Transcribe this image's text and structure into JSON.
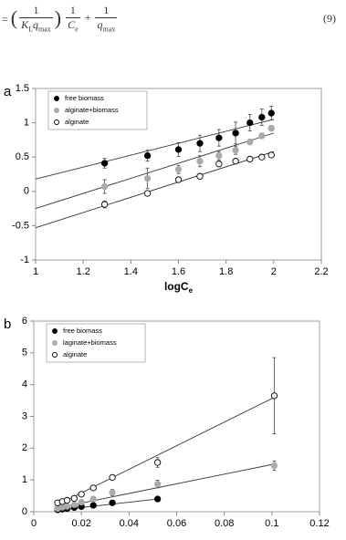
{
  "equation": {
    "eq": "=",
    "n1": "1",
    "k": "K",
    "ksub": "L",
    "q1": "q",
    "q1sub": "max",
    "n2": "1",
    "c": "C",
    "csub": "e",
    "plus": "+",
    "n3": "1",
    "q2": "q",
    "q2sub": "max",
    "number": "(9)"
  },
  "chart_data": [
    {
      "type": "scatter",
      "panel": "a",
      "x_label": "logC",
      "x_label_sub": "e",
      "xlim": [
        1,
        2.2
      ],
      "xticks": [
        1,
        1.2,
        1.4,
        1.6,
        1.8,
        2,
        2.2
      ],
      "ylim": [
        -1,
        1.5
      ],
      "yticks": [
        -1,
        -0.5,
        0,
        0.5,
        1,
        1.5
      ],
      "x": [
        1.29,
        1.47,
        1.6,
        1.69,
        1.77,
        1.84,
        1.9,
        1.95,
        1.99
      ],
      "legend": "top-left",
      "series": [
        {
          "name": "free biomass",
          "color": "#000000",
          "marker": "filled",
          "values": [
            0.41,
            0.52,
            0.61,
            0.7,
            0.78,
            0.85,
            1.0,
            1.08,
            1.14
          ],
          "errors": [
            0.07,
            0.08,
            0.1,
            0.12,
            0.12,
            0.16,
            0.12,
            0.12,
            0.1
          ],
          "fit": {
            "x": [
              1,
              2
            ],
            "y": [
              0.18,
              1.05
            ]
          }
        },
        {
          "name": "alginate+biomass",
          "color": "#aaaaaa",
          "marker": "filled",
          "values": [
            0.07,
            0.19,
            0.32,
            0.44,
            0.52,
            0.6,
            0.72,
            0.81,
            0.92
          ],
          "errors": [
            0.1,
            0.15,
            0.06,
            0.08,
            0.06,
            0.06,
            0.04,
            0.04,
            0.04
          ],
          "fit": {
            "x": [
              1,
              2
            ],
            "y": [
              -0.25,
              0.85
            ]
          }
        },
        {
          "name": "alginate",
          "color": "#000000",
          "marker": "open",
          "values": [
            -0.19,
            -0.03,
            0.17,
            0.22,
            0.4,
            0.44,
            0.47,
            0.5,
            0.53
          ],
          "errors": [
            0.05,
            0.03,
            0.04,
            0.04,
            0.04,
            0.03,
            0.03,
            0.03,
            0.03
          ],
          "fit": {
            "x": [
              1,
              2
            ],
            "y": [
              -0.53,
              0.58
            ]
          }
        }
      ]
    },
    {
      "type": "scatter",
      "panel": "b",
      "xlim": [
        0,
        0.12
      ],
      "xticks": [
        0,
        0.02,
        0.04,
        0.06,
        0.08,
        0.1,
        0.12
      ],
      "ylim": [
        0,
        6
      ],
      "yticks": [
        0,
        1,
        2,
        3,
        4,
        5,
        6
      ],
      "x": [
        0.01,
        0.012,
        0.014,
        0.017,
        0.02,
        0.025,
        0.033,
        0.052,
        0.101
      ],
      "legend": "top-left",
      "series": [
        {
          "name": "free biomass",
          "color": "#000000",
          "marker": "filled",
          "values": [
            0.06,
            0.08,
            0.1,
            0.13,
            0.16,
            0.2,
            0.28,
            0.4,
            null
          ],
          "errors": [
            null,
            null,
            null,
            null,
            null,
            null,
            null,
            null,
            null
          ],
          "fit": {
            "x": [
              0.01,
              0.052
            ],
            "y": [
              0.05,
              0.4
            ]
          }
        },
        {
          "name": "laginate+biomass",
          "color": "#aaaaaa",
          "marker": "filled",
          "values": [
            0.1,
            0.14,
            0.17,
            0.22,
            0.3,
            0.4,
            0.6,
            0.87,
            1.45
          ],
          "errors": [
            null,
            null,
            null,
            null,
            0.05,
            0.06,
            0.1,
            0.12,
            0.15
          ],
          "fit": {
            "x": [
              0.01,
              0.101
            ],
            "y": [
              0.12,
              1.5
            ]
          }
        },
        {
          "name": "alginate",
          "color": "#000000",
          "marker": "open",
          "values": [
            0.28,
            0.32,
            0.36,
            0.42,
            0.55,
            0.75,
            1.08,
            1.55,
            3.65
          ],
          "errors": [
            null,
            null,
            null,
            null,
            0.05,
            0.06,
            0.06,
            0.15,
            1.2
          ],
          "fit": {
            "x": [
              0.01,
              0.101
            ],
            "y": [
              0.22,
              3.6
            ]
          }
        }
      ]
    }
  ]
}
